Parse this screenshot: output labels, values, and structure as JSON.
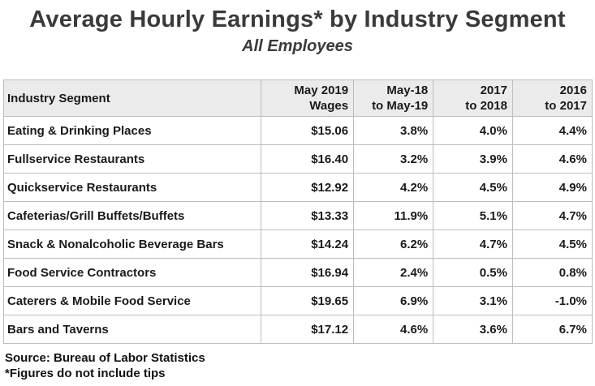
{
  "title": "Average Hourly Earnings* by Industry Segment",
  "subtitle": "All Employees",
  "chart_data": {
    "type": "table",
    "columns": [
      {
        "line1": "Industry Segment",
        "line2": ""
      },
      {
        "line1": "May 2019",
        "line2": "Wages"
      },
      {
        "line1": "May-18",
        "line2": "to May-19"
      },
      {
        "line1": "2017",
        "line2": "to 2018"
      },
      {
        "line1": "2016",
        "line2": "to 2017"
      }
    ],
    "rows": [
      {
        "segment": "Eating & Drinking Places",
        "wage": "$15.06",
        "c1819": "3.8%",
        "c1718": "4.0%",
        "c1617": "4.4%"
      },
      {
        "segment": "Fullservice Restaurants",
        "wage": "$16.40",
        "c1819": "3.2%",
        "c1718": "3.9%",
        "c1617": "4.6%"
      },
      {
        "segment": "Quickservice Restaurants",
        "wage": "$12.92",
        "c1819": "4.2%",
        "c1718": "4.5%",
        "c1617": "4.9%"
      },
      {
        "segment": "Cafeterias/Grill Buffets/Buffets",
        "wage": "$13.33",
        "c1819": "11.9%",
        "c1718": "5.1%",
        "c1617": "4.7%"
      },
      {
        "segment": "Snack & Nonalcoholic Beverage Bars",
        "wage": "$14.24",
        "c1819": "6.2%",
        "c1718": "4.7%",
        "c1617": "4.5%"
      },
      {
        "segment": "Food Service Contractors",
        "wage": "$16.94",
        "c1819": "2.4%",
        "c1718": "0.5%",
        "c1617": "0.8%"
      },
      {
        "segment": "Caterers & Mobile Food Service",
        "wage": "$19.65",
        "c1819": "6.9%",
        "c1718": "3.1%",
        "c1617": "-1.0%"
      },
      {
        "segment": "Bars and Taverns",
        "wage": "$17.12",
        "c1819": "4.6%",
        "c1718": "3.6%",
        "c1617": "6.7%"
      }
    ]
  },
  "footer": {
    "source": "Source: Bureau of Labor Statistics",
    "note": "*Figures do not include tips"
  }
}
